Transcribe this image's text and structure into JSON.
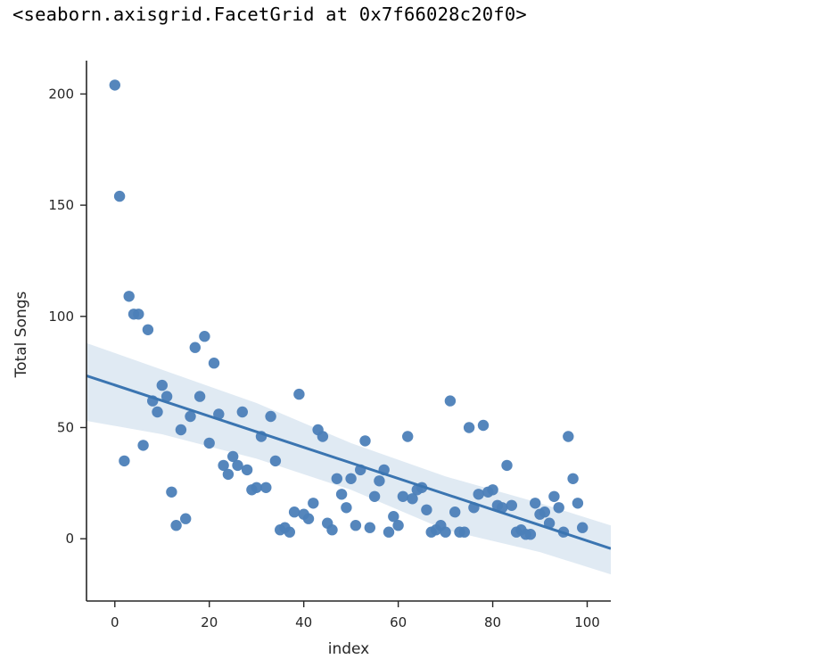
{
  "output": {
    "repr_text": "<seaborn.axisgrid.FacetGrid at 0x7f66028c20f0>"
  },
  "colors": {
    "point": "#4c80b8",
    "line": "#3b75b1",
    "band": "#dbe6f1",
    "axis": "#262626",
    "background": "#ffffff"
  },
  "chart_data": {
    "type": "scatter",
    "subtype": "regplot",
    "title": "",
    "xlabel": "index",
    "ylabel": "Total Songs",
    "xlim": [
      -6,
      105
    ],
    "ylim": [
      -28,
      215
    ],
    "xticks": [
      0,
      20,
      40,
      60,
      80,
      100
    ],
    "yticks": [
      0,
      50,
      100,
      150,
      200
    ],
    "xtick_labels": [
      "0",
      "20",
      "40",
      "60",
      "80",
      "100"
    ],
    "ytick_labels": [
      "0",
      "50",
      "100",
      "150",
      "200"
    ],
    "grid": false,
    "legend": "none",
    "regression": {
      "x_range": [
        -6,
        105
      ],
      "intercept": 69.1,
      "slope": -0.7,
      "ci_upper": [
        {
          "x": -6,
          "y": 88
        },
        {
          "x": 10,
          "y": 76
        },
        {
          "x": 30,
          "y": 61
        },
        {
          "x": 50,
          "y": 43
        },
        {
          "x": 70,
          "y": 28
        },
        {
          "x": 90,
          "y": 16
        },
        {
          "x": 105,
          "y": 6
        }
      ],
      "ci_lower": [
        {
          "x": -6,
          "y": 53
        },
        {
          "x": 10,
          "y": 47
        },
        {
          "x": 30,
          "y": 36
        },
        {
          "x": 50,
          "y": 22
        },
        {
          "x": 70,
          "y": 4
        },
        {
          "x": 90,
          "y": -6
        },
        {
          "x": 105,
          "y": -16
        }
      ]
    },
    "x": [
      0,
      1,
      2,
      3,
      4,
      5,
      6,
      7,
      8,
      9,
      10,
      11,
      12,
      13,
      14,
      15,
      16,
      17,
      18,
      19,
      20,
      21,
      22,
      23,
      24,
      25,
      26,
      27,
      28,
      29,
      30,
      31,
      32,
      33,
      34,
      35,
      36,
      37,
      38,
      39,
      40,
      41,
      42,
      43,
      44,
      45,
      46,
      47,
      48,
      49,
      50,
      51,
      52,
      53,
      54,
      55,
      56,
      57,
      58,
      59,
      60,
      61,
      62,
      63,
      64,
      65,
      66,
      67,
      68,
      69,
      70,
      71,
      72,
      73,
      74,
      75,
      76,
      77,
      78,
      79,
      80,
      81,
      82,
      83,
      84,
      85,
      86,
      87,
      88,
      89,
      90,
      91,
      92,
      93,
      94,
      95,
      96,
      97,
      98,
      99
    ],
    "y": [
      204,
      154,
      35,
      109,
      101,
      101,
      42,
      94,
      62,
      57,
      69,
      64,
      21,
      6,
      49,
      9,
      55,
      86,
      64,
      91,
      43,
      79,
      56,
      33,
      29,
      37,
      33,
      57,
      31,
      22,
      23,
      46,
      23,
      55,
      35,
      4,
      5,
      3,
      12,
      65,
      11,
      9,
      16,
      49,
      46,
      7,
      4,
      27,
      20,
      14,
      27,
      6,
      31,
      44,
      5,
      19,
      26,
      31,
      3,
      10,
      6,
      19,
      46,
      18,
      22,
      23,
      13,
      3,
      4,
      6,
      3,
      62,
      12,
      3,
      3,
      50,
      14,
      20,
      51,
      21,
      22,
      15,
      14,
      33,
      15,
      3,
      4,
      2,
      2,
      16,
      11,
      12,
      7,
      19,
      14,
      3,
      46,
      27,
      16,
      5
    ]
  }
}
